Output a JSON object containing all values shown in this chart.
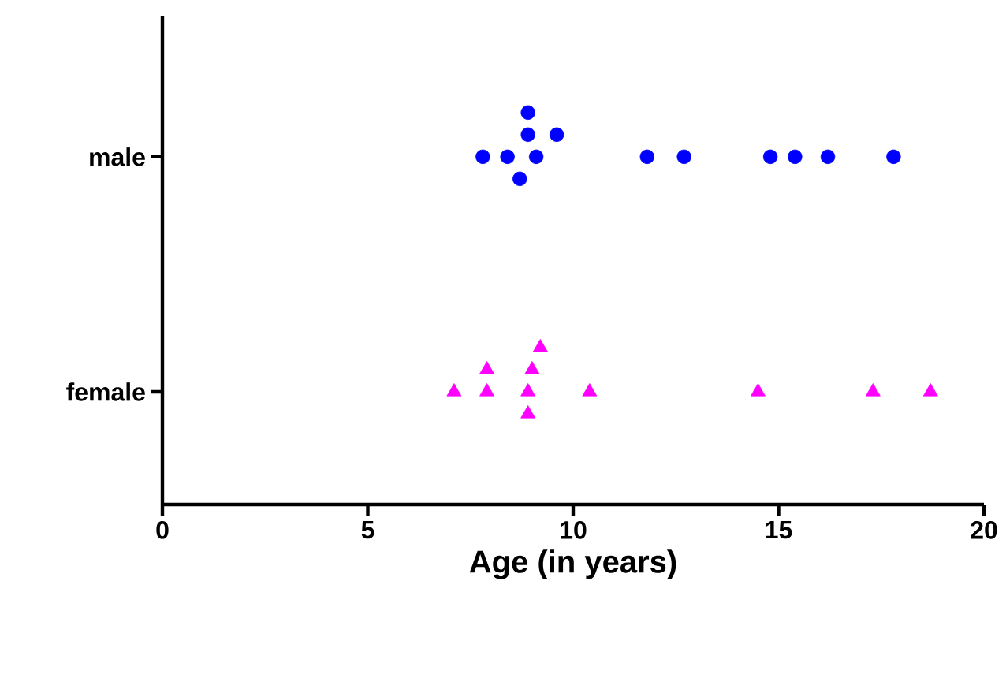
{
  "chart_data": {
    "type": "scatter",
    "orientation": "horizontal",
    "categories": [
      "male",
      "female"
    ],
    "xlabel": "Age (in years)",
    "xlim": [
      0,
      20
    ],
    "xticks": [
      0,
      5,
      10,
      15,
      20
    ],
    "series": [
      {
        "color": "#0000ff",
        "marker": "circle",
        "x": [
          "male",
          "male",
          "male",
          "male",
          "male",
          "male",
          "male",
          "male",
          "male",
          "male",
          "male",
          "male",
          "male"
        ],
        "values": [
          7.8,
          8.4,
          9.1,
          8.9,
          8.7,
          9.6,
          8.9,
          11.8,
          12.7,
          14.8,
          15.4,
          16.2,
          17.8
        ]
      },
      {
        "color": "#ff00ff",
        "marker": "triangle",
        "x": [
          "female",
          "female",
          "female",
          "female",
          "female",
          "female",
          "female",
          "female",
          "female",
          "female",
          "female"
        ],
        "values": [
          7.1,
          7.9,
          7.9,
          8.9,
          9.0,
          8.9,
          9.2,
          10.4,
          14.5,
          17.3,
          18.7
        ]
      }
    ]
  }
}
